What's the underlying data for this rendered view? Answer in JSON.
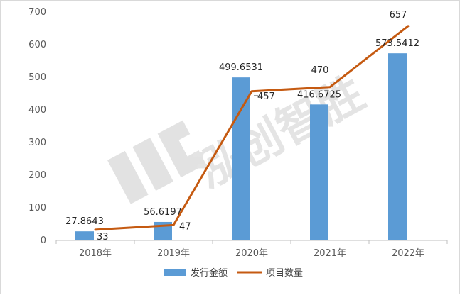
{
  "chart_data": {
    "type": "bar",
    "categories": [
      "2018年",
      "2019年",
      "2020年",
      "2021年",
      "2022年"
    ],
    "ylim": [
      0,
      700
    ],
    "yticks": [
      0,
      100,
      200,
      300,
      400,
      500,
      600,
      700
    ],
    "grid": false,
    "legend_position": "bottom",
    "series": [
      {
        "name": "发行金额",
        "kind": "bar",
        "color": "#5b9bd5",
        "values": [
          27.8643,
          56.6197,
          499.6531,
          416.6725,
          573.5412
        ],
        "labels": [
          "27.8643",
          "56.6197",
          "499.6531",
          "416.6725",
          "573.5412"
        ]
      },
      {
        "name": "项目数量",
        "kind": "line",
        "color": "#c55a11",
        "values": [
          33,
          47,
          457,
          470,
          657
        ],
        "labels": [
          "33",
          "47",
          "457",
          "470",
          "657"
        ]
      }
    ]
  },
  "watermark": {
    "text": "泓创智胜",
    "icon": "hc-logo-icon"
  }
}
